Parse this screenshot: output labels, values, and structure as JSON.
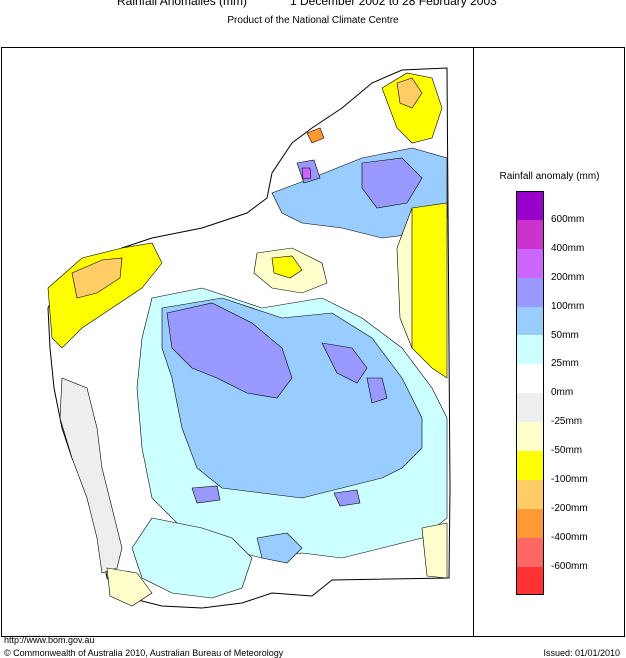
{
  "header": {
    "title_left": "Rainfall Anomalies (mm)",
    "title_right": "1 December 2002 to 28 February 2003",
    "subtitle": "Product of the National Climate Centre"
  },
  "legend": {
    "title": "Rainfall anomaly (mm)",
    "swatch_colors": [
      "#9900cc",
      "#cc33cc",
      "#cc66ff",
      "#9999ff",
      "#99ccff",
      "#ccffff",
      "#ffffff",
      "#eeeeee",
      "#ffffcc",
      "#ffff00",
      "#ffcc66",
      "#ff9933",
      "#ff6666",
      "#ff3333"
    ],
    "labels": [
      "600mm",
      "400mm",
      "200mm",
      "100mm",
      "50mm",
      "25mm",
      "0mm",
      "-25mm",
      "-50mm",
      "-100mm",
      "-200mm",
      "-400mm",
      "-600mm"
    ]
  },
  "footer": {
    "url": "http://www.bom.gov.au",
    "copyright": "© Commonwealth of Australia 2010, Australian Bureau of Meteorology",
    "issued": "Issued: 01/01/2010"
  }
}
